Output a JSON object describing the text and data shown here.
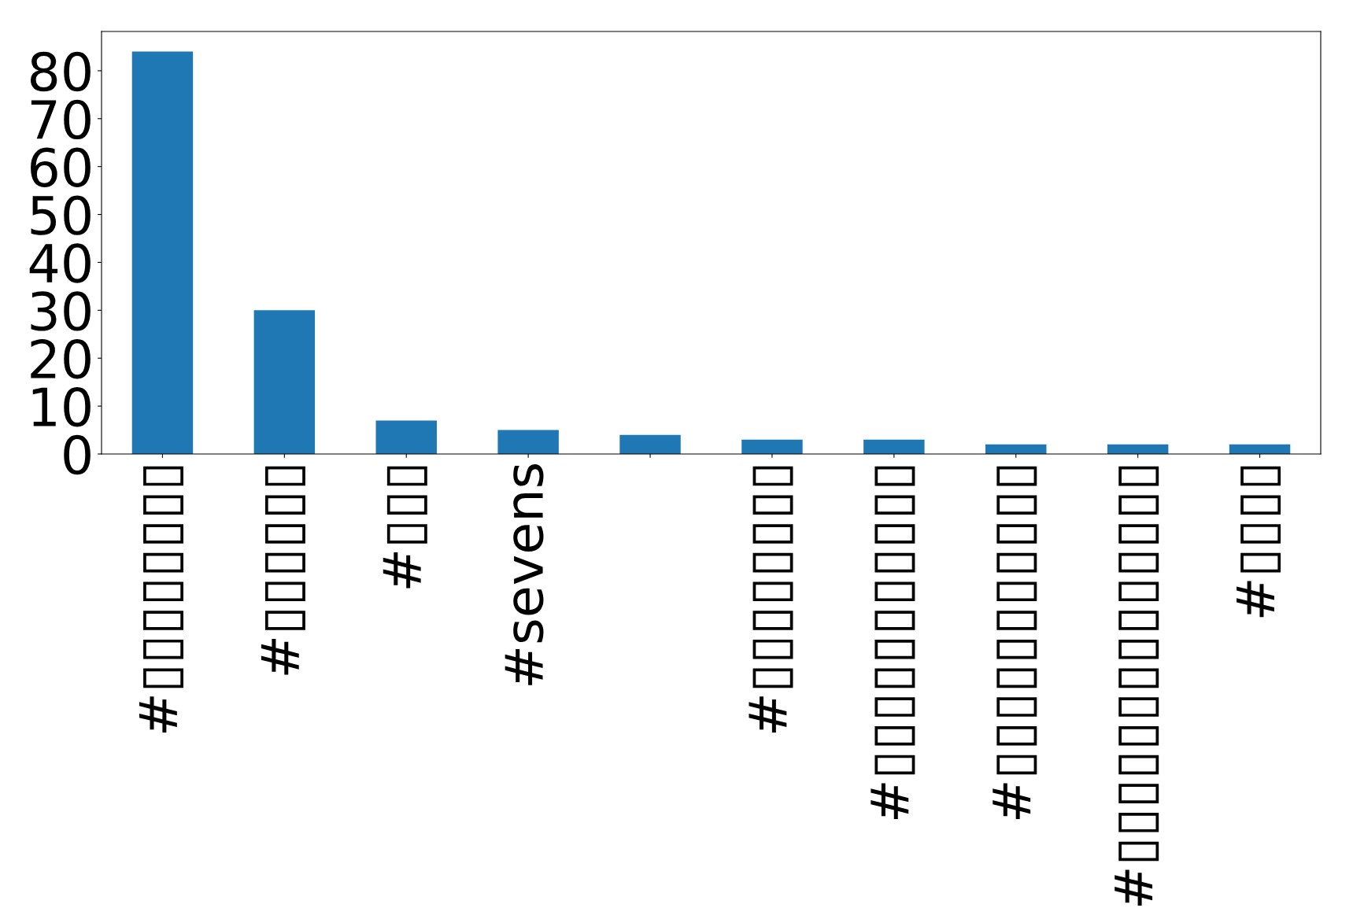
{
  "chart_data": {
    "type": "bar",
    "categories": [
      "#▯▯▯▯▯▯▯▯",
      "#▯▯▯▯▯▯",
      "#▯▯▯",
      "#sevens",
      null,
      "#▯▯▯▯▯▯▯▯",
      "#▯▯▯▯▯▯▯▯▯▯▯",
      "#▯▯▯▯▯▯▯▯▯▯▯",
      "#▯▯▯▯▯▯▯▯▯▯▯▯▯▯",
      "#▯▯▯▯"
    ],
    "values": [
      84,
      30,
      7,
      5,
      4,
      3,
      3,
      2,
      2,
      2
    ],
    "color": "#1f77b4",
    "ylim": [
      0,
      88.2
    ],
    "yticks": [
      0,
      10,
      20,
      30,
      40,
      50,
      60,
      70,
      80
    ],
    "grid": false,
    "legend": false
  }
}
